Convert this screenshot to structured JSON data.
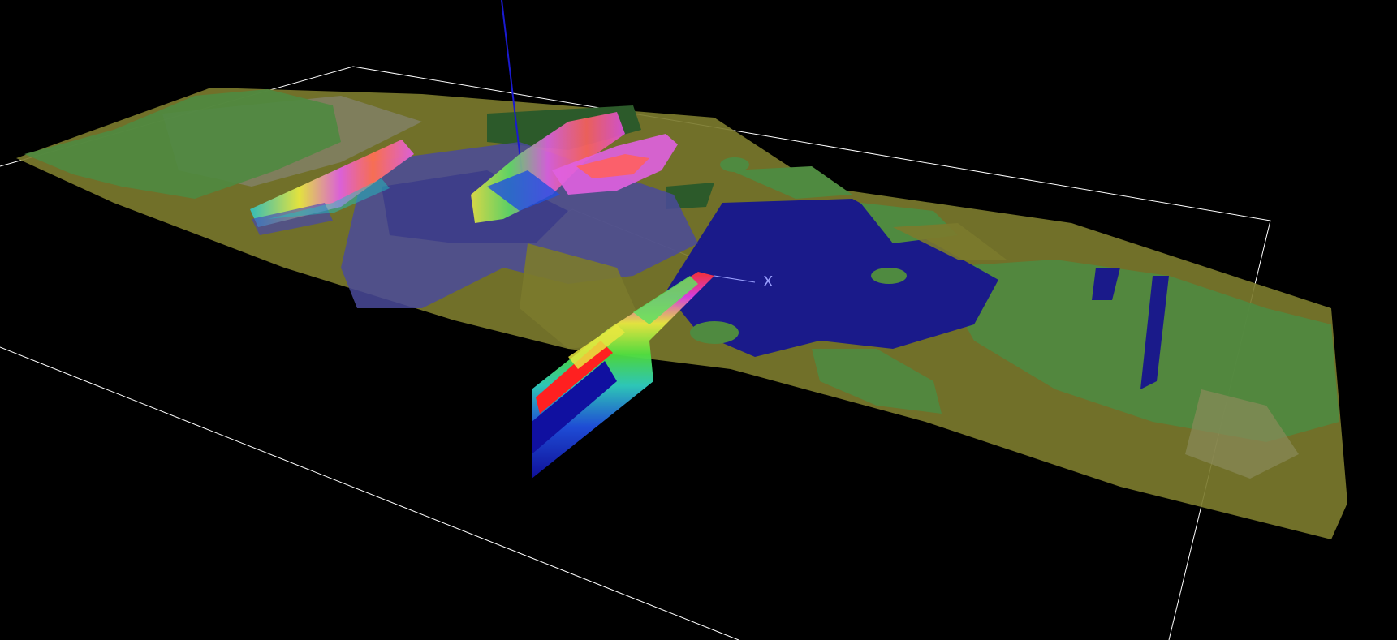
{
  "viewport": {
    "background": "#000000",
    "axis_marker_label": "X",
    "axis_marker_color": "#9aa0ff",
    "vertical_axis_color": "#1a1ad0",
    "frame_color": "#ffffff"
  },
  "layers": {
    "terrain_colors": {
      "olive": "#7b7a2c",
      "grey": "#8a8a86",
      "green": "#4f8a40",
      "dark_green": "#2c5a2a",
      "lake_blue": "#1a1a8a",
      "translucent_blue": "#4a4a9a"
    },
    "section_colors": [
      "#1010a0",
      "#3060ff",
      "#20d0d0",
      "#40e040",
      "#e0e040",
      "#e040e0",
      "#ff6060",
      "#e01010"
    ]
  }
}
